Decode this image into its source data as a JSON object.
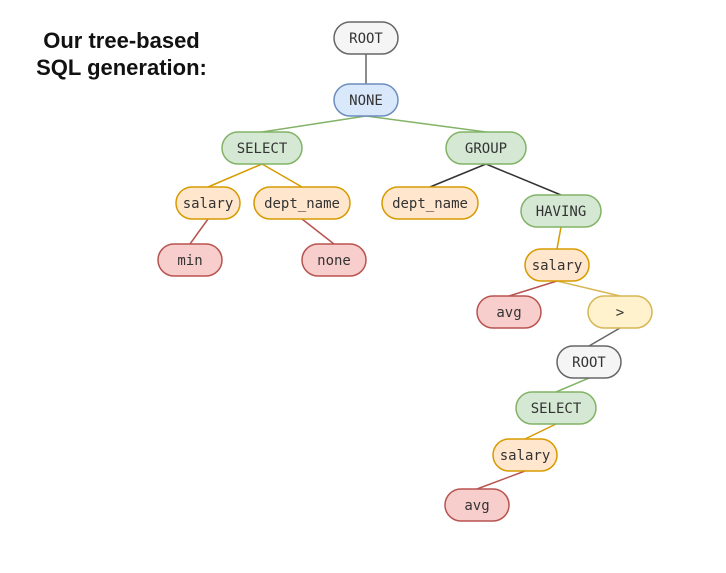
{
  "title": {
    "line1": "Our tree-based",
    "line2": "SQL generation:"
  },
  "colors": {
    "gray": {
      "fill": "#f5f5f5",
      "stroke": "#666666"
    },
    "blue": {
      "fill": "#dae8fc",
      "stroke": "#6c8ebf"
    },
    "green": {
      "fill": "#d5e8d4",
      "stroke": "#82b366"
    },
    "orange": {
      "fill": "#ffe6cc",
      "stroke": "#d79b00"
    },
    "yellow": {
      "fill": "#fff2cc",
      "stroke": "#d6b656"
    },
    "red": {
      "fill": "#f8cecc",
      "stroke": "#b85450"
    },
    "edge_default": "#82b366",
    "edge_dark": "#333333"
  },
  "tree": {
    "nodes": [
      {
        "id": "root1",
        "label": "ROOT",
        "color": "gray"
      },
      {
        "id": "none1",
        "label": "NONE",
        "color": "blue"
      },
      {
        "id": "select1",
        "label": "SELECT",
        "color": "green"
      },
      {
        "id": "group1",
        "label": "GROUP",
        "color": "green"
      },
      {
        "id": "salary1",
        "label": "salary",
        "color": "orange"
      },
      {
        "id": "deptname1",
        "label": "dept_name",
        "color": "orange"
      },
      {
        "id": "deptname2",
        "label": "dept_name",
        "color": "orange"
      },
      {
        "id": "having1",
        "label": "HAVING",
        "color": "green"
      },
      {
        "id": "min1",
        "label": "min",
        "color": "red"
      },
      {
        "id": "none2",
        "label": "none",
        "color": "red"
      },
      {
        "id": "salary2",
        "label": "salary",
        "color": "orange"
      },
      {
        "id": "avg1",
        "label": "avg",
        "color": "red"
      },
      {
        "id": "gt1",
        "label": ">",
        "color": "yellow"
      },
      {
        "id": "root2",
        "label": "ROOT",
        "color": "gray"
      },
      {
        "id": "select2",
        "label": "SELECT",
        "color": "green"
      },
      {
        "id": "salary3",
        "label": "salary",
        "color": "orange"
      },
      {
        "id": "avg2",
        "label": "avg",
        "color": "red"
      }
    ],
    "edges": [
      {
        "from": "root1",
        "to": "none1",
        "color": "gray"
      },
      {
        "from": "none1",
        "to": "select1",
        "color": "green"
      },
      {
        "from": "none1",
        "to": "group1",
        "color": "green"
      },
      {
        "from": "select1",
        "to": "salary1",
        "color": "orange"
      },
      {
        "from": "select1",
        "to": "deptname1",
        "color": "orange"
      },
      {
        "from": "group1",
        "to": "deptname2",
        "color": "dark"
      },
      {
        "from": "group1",
        "to": "having1",
        "color": "dark"
      },
      {
        "from": "salary1",
        "to": "min1",
        "color": "red"
      },
      {
        "from": "deptname1",
        "to": "none2",
        "color": "red"
      },
      {
        "from": "having1",
        "to": "salary2",
        "color": "orange"
      },
      {
        "from": "salary2",
        "to": "avg1",
        "color": "red"
      },
      {
        "from": "salary2",
        "to": "gt1",
        "color": "yellow"
      },
      {
        "from": "gt1",
        "to": "root2",
        "color": "gray"
      },
      {
        "from": "root2",
        "to": "select2",
        "color": "green"
      },
      {
        "from": "select2",
        "to": "salary3",
        "color": "orange"
      },
      {
        "from": "salary3",
        "to": "avg2",
        "color": "red"
      }
    ]
  }
}
